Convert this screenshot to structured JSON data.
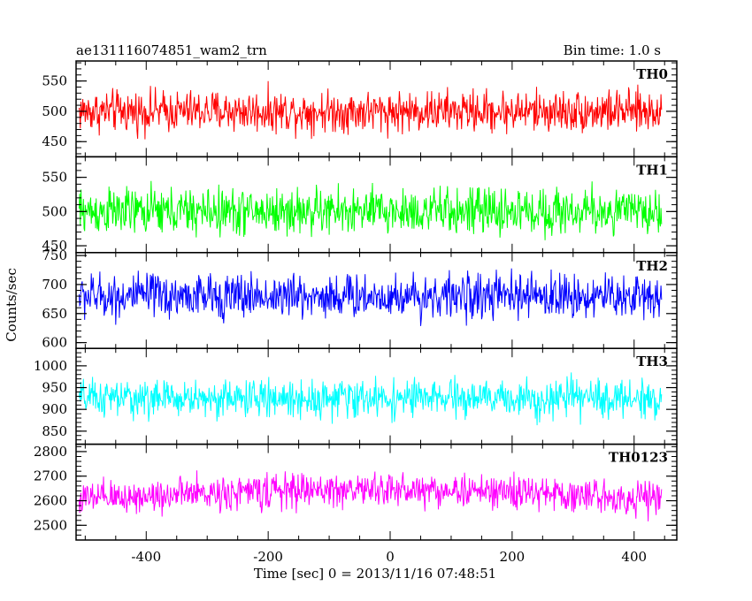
{
  "header": {
    "source_name": "ae131116074851_wam2_trn",
    "bin_time": "Bin time: 1.0 s"
  },
  "axes": {
    "xlabel": "Time [sec] 0 = 2013/11/16 07:48:51",
    "ylabel": "Counts/sec"
  },
  "chart_data": {
    "type": "line",
    "x_range": [
      -510,
      445
    ],
    "x_domain": [
      -515,
      470
    ],
    "x_ticks": [
      -400,
      -200,
      0,
      200,
      400
    ],
    "grid": false,
    "panels": [
      {
        "name": "TH0",
        "color": "#ff0000",
        "ylim": [
          425,
          583
        ],
        "yticks": [
          450,
          500,
          550
        ],
        "series": {
          "mean": 500,
          "noise": 32,
          "y_min": 430,
          "y_max": 583,
          "trend": 0
        }
      },
      {
        "name": "TH1",
        "color": "#00ff00",
        "ylim": [
          440,
          580
        ],
        "yticks": [
          450,
          500,
          550
        ],
        "series": {
          "mean": 500,
          "noise": 32,
          "y_min": 440,
          "y_max": 580,
          "trend": 0
        }
      },
      {
        "name": "TH2",
        "color": "#0000ff",
        "ylim": [
          590,
          755
        ],
        "yticks": [
          600,
          650,
          700,
          750
        ],
        "series": {
          "mean": 680,
          "noise": 36,
          "y_min": 590,
          "y_max": 755,
          "trend": 0
        }
      },
      {
        "name": "TH3",
        "color": "#00ffff",
        "ylim": [
          820,
          1040
        ],
        "yticks": [
          850,
          900,
          950,
          1000
        ],
        "series": {
          "mean": 925,
          "noise": 40,
          "y_min": 820,
          "y_max": 1040,
          "trend": 0
        }
      },
      {
        "name": "TH0123",
        "color": "#ff00ff",
        "ylim": [
          2440,
          2830
        ],
        "yticks": [
          2500,
          2600,
          2700,
          2800
        ],
        "series": {
          "mean": 2605,
          "noise": 65,
          "y_min": 2460,
          "y_max": 2830,
          "trend": 40
        }
      }
    ]
  }
}
